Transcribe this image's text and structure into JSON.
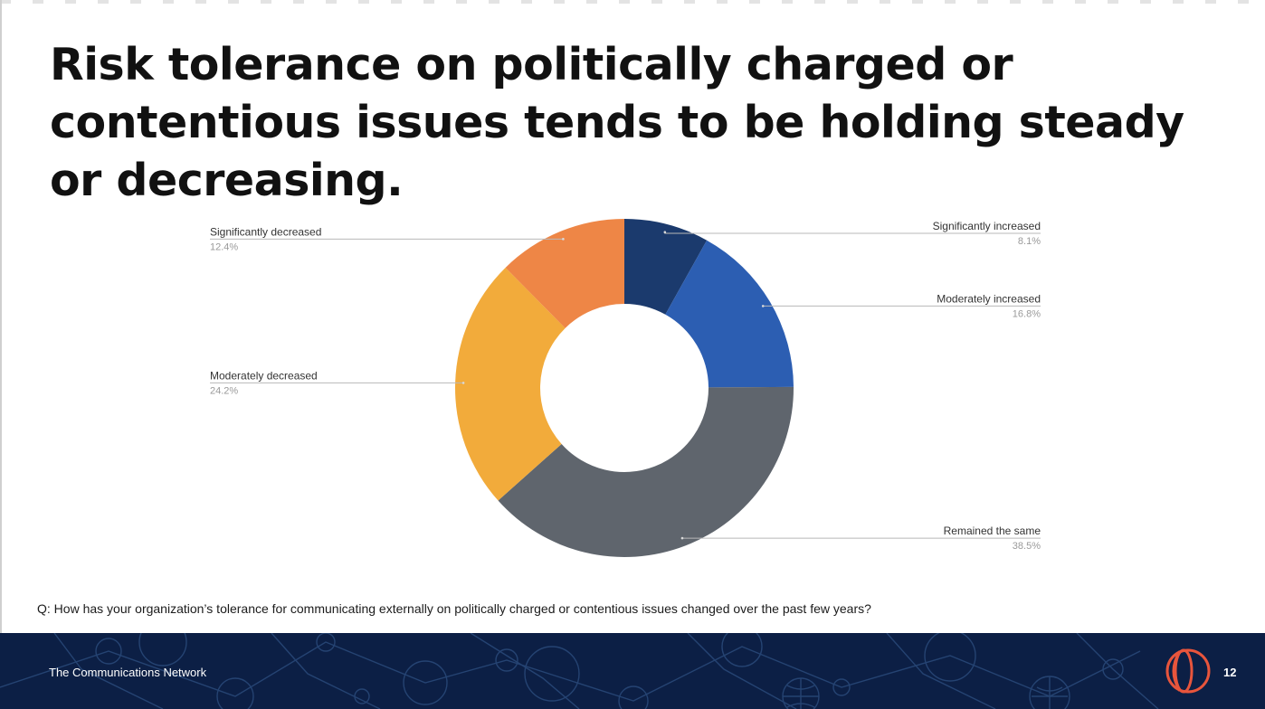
{
  "slide": {
    "title": "Risk tolerance on politically charged or contentious issues tends to be holding steady or decreasing.",
    "question": "Q: How has your organization’s tolerance for communicating externally on politically charged or contentious issues changed over the past few years?",
    "footer_org": "The Communications Network",
    "page_number": "12"
  },
  "chart_data": {
    "type": "pie",
    "variant": "donut",
    "title": "",
    "slices": [
      {
        "label": "Significantly increased",
        "value": 8.1,
        "display": "8.1%",
        "color": "#1b3a6d",
        "side": "right"
      },
      {
        "label": "Moderately increased",
        "value": 16.8,
        "display": "16.8%",
        "color": "#2c5eb2",
        "side": "right"
      },
      {
        "label": "Remained the same",
        "value": 38.5,
        "display": "38.5%",
        "color": "#5f656d",
        "side": "right"
      },
      {
        "label": "Moderately decreased",
        "value": 24.2,
        "display": "24.2%",
        "color": "#f2ab3b",
        "side": "left"
      },
      {
        "label": "Significantly decreased",
        "value": 12.4,
        "display": "12.4%",
        "color": "#ee8646",
        "side": "left"
      }
    ],
    "start": "12 o'clock",
    "direction": "clockwise"
  }
}
